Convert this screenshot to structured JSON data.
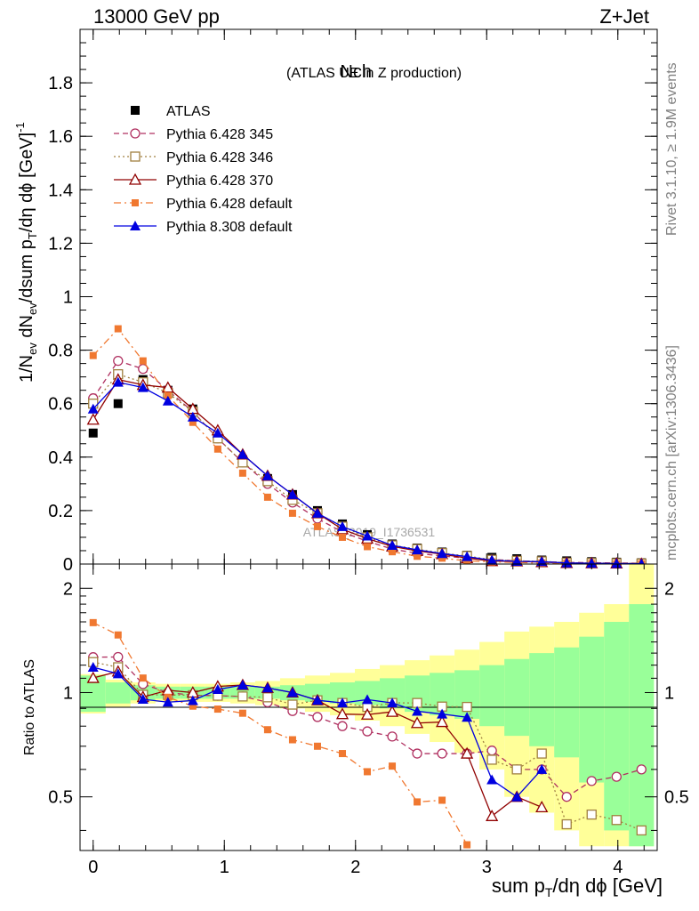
{
  "header": {
    "left": "13000 GeV pp",
    "right": "Z+Jet"
  },
  "side_text": {
    "top": "Rivet 3.1.10, ≥ 1.9M events",
    "bottom": "mcplots.cern.ch [arXiv:1306.3436]"
  },
  "watermark": "ATLAS_2019_I1736531",
  "chart_data": {
    "type": "line",
    "title": "Nch",
    "subtitle": "(ATLAS UE in Z production)",
    "xlabel": "sum pT/dη dϕ [GeV]",
    "ylabel": "1/Nev dNev/dsum pT/dη dϕ [GeV]^-1",
    "xlim": [
      -0.1,
      4.3
    ],
    "ylim": [
      0,
      2.0
    ],
    "x_ticks": [
      "0",
      "1",
      "2",
      "3",
      "4"
    ],
    "y_ticks": [
      "0",
      "0.2",
      "0.4",
      "0.6",
      "0.8",
      "1",
      "1.2",
      "1.4",
      "1.6",
      "1.8"
    ],
    "x": [
      0.0,
      0.19,
      0.38,
      0.57,
      0.76,
      0.95,
      1.14,
      1.33,
      1.52,
      1.71,
      1.9,
      2.09,
      2.28,
      2.47,
      2.66,
      2.85,
      3.04,
      3.23,
      3.42,
      3.61,
      3.8,
      3.99,
      4.18
    ],
    "series": [
      {
        "name": "ATLAS",
        "color": "#000000",
        "marker": "square",
        "line": "none",
        "values": [
          0.49,
          0.6,
          0.69,
          0.65,
          0.58,
          0.48,
          0.39,
          0.32,
          0.26,
          0.2,
          0.15,
          0.11,
          0.075,
          0.06,
          0.045,
          0.033,
          0.025,
          0.02,
          0.015,
          0.012,
          0.009,
          0.007,
          0.005
        ]
      },
      {
        "name": "Pythia 6.428 345",
        "color": "#b03060",
        "marker": "circle-open",
        "line": "dashed",
        "values": [
          0.62,
          0.76,
          0.73,
          0.65,
          0.57,
          0.47,
          0.38,
          0.3,
          0.23,
          0.17,
          0.12,
          0.085,
          0.056,
          0.04,
          0.03,
          0.022,
          0.017,
          0.012,
          0.009,
          0.006,
          0.005,
          0.004,
          0.003
        ]
      },
      {
        "name": "Pythia 6.428 346",
        "color": "#a08040",
        "marker": "square-open",
        "line": "dotted",
        "values": [
          0.6,
          0.71,
          0.68,
          0.64,
          0.57,
          0.47,
          0.38,
          0.31,
          0.24,
          0.19,
          0.14,
          0.1,
          0.07,
          0.056,
          0.041,
          0.03,
          0.016,
          0.012,
          0.01,
          0.005,
          0.004,
          0.003,
          0.002
        ]
      },
      {
        "name": "Pythia 6.428 370",
        "color": "#900000",
        "marker": "triangle-open",
        "line": "solid",
        "values": [
          0.54,
          0.69,
          0.67,
          0.66,
          0.58,
          0.5,
          0.41,
          0.33,
          0.26,
          0.19,
          0.13,
          0.095,
          0.066,
          0.049,
          0.037,
          0.022,
          0.011,
          0.01,
          0.007,
          0.004,
          0.003,
          0.002,
          0.001
        ]
      },
      {
        "name": "Pythia 6.428 default",
        "color": "#f07830",
        "marker": "square-filled",
        "line": "dashdot",
        "values": [
          0.78,
          0.88,
          0.76,
          0.63,
          0.53,
          0.43,
          0.34,
          0.25,
          0.19,
          0.14,
          0.1,
          0.065,
          0.046,
          0.029,
          0.022,
          0.012,
          0.008,
          0.006,
          0.004,
          0.003,
          0.002,
          0.001,
          0.001
        ]
      },
      {
        "name": "Pythia 8.308 default",
        "color": "#0000e0",
        "marker": "triangle-filled",
        "line": "solid",
        "values": [
          0.58,
          0.68,
          0.66,
          0.61,
          0.55,
          0.49,
          0.41,
          0.33,
          0.26,
          0.19,
          0.14,
          0.105,
          0.07,
          0.053,
          0.039,
          0.028,
          0.014,
          0.01,
          0.009,
          0.004,
          0.003,
          0.002,
          0.001
        ]
      }
    ],
    "ratio": {
      "ylabel": "Ratio to ATLAS",
      "ylim": [
        0.35,
        2.35
      ],
      "y_ticks": [
        "0.5",
        "1",
        "2"
      ],
      "band_inner": [
        0.12,
        0.07,
        0.05,
        0.04,
        0.04,
        0.04,
        0.04,
        0.04,
        0.05,
        0.06,
        0.07,
        0.08,
        0.1,
        0.12,
        0.14,
        0.16,
        0.2,
        0.25,
        0.3,
        0.35,
        0.45,
        0.6,
        0.8
      ],
      "band_outer": [
        0.13,
        0.09,
        0.07,
        0.06,
        0.06,
        0.06,
        0.07,
        0.08,
        0.1,
        0.12,
        0.14,
        0.17,
        0.2,
        0.24,
        0.28,
        0.33,
        0.4,
        0.5,
        0.55,
        0.6,
        0.7,
        0.8,
        1.4
      ]
    }
  }
}
